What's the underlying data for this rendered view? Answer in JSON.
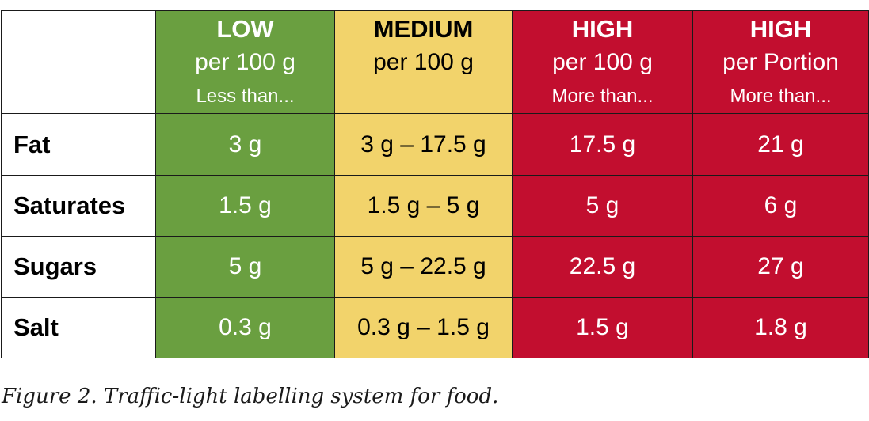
{
  "table": {
    "columns": [
      {
        "level": "LOW",
        "basis": "per 100 g",
        "qualifier": "Less than..."
      },
      {
        "level": "MEDIUM",
        "basis": "per 100 g",
        "qualifier": ""
      },
      {
        "level": "HIGH",
        "basis": "per 100 g",
        "qualifier": "More than..."
      },
      {
        "level": "HIGH",
        "basis": "per Portion",
        "qualifier": "More than..."
      }
    ],
    "rows": [
      {
        "nutrient": "Fat",
        "low": "3 g",
        "medium": "3 g – 17.5 g",
        "high100": "17.5 g",
        "highPortion": "21 g"
      },
      {
        "nutrient": "Saturates",
        "low": "1.5 g",
        "medium": "1.5 g – 5 g",
        "high100": "5 g",
        "highPortion": "6 g"
      },
      {
        "nutrient": "Sugars",
        "low": "5 g",
        "medium": "5 g – 22.5 g",
        "high100": "22.5 g",
        "highPortion": "27 g"
      },
      {
        "nutrient": "Salt",
        "low": "0.3 g",
        "medium": "0.3 g – 1.5 g",
        "high100": "1.5 g",
        "highPortion": "1.8 g"
      }
    ]
  },
  "colors": {
    "low": "#6a9f40",
    "medium": "#f2d36b",
    "high": "#c20e2f"
  },
  "caption": "Figure 2. Traffic-light labelling system for food."
}
